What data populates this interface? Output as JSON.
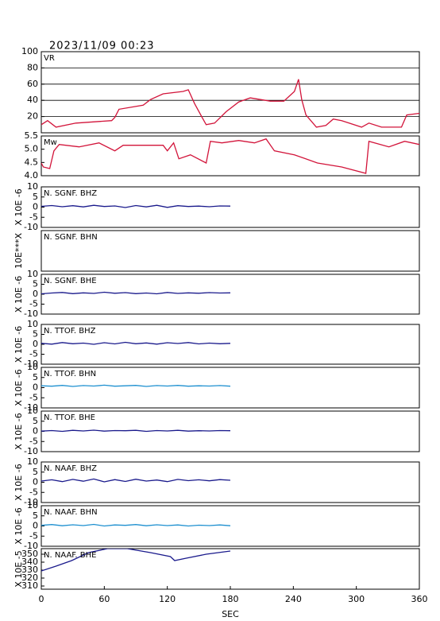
{
  "chart_data": [
    {
      "type": "line",
      "title": "2023/11/09 00:23",
      "label": "VR",
      "color": "#d2143a",
      "grid": true,
      "xlim": [
        0,
        360
      ],
      "ylim": [
        0,
        100
      ],
      "yticks": [
        20,
        40,
        60,
        80,
        100
      ],
      "x": [
        0,
        6,
        14,
        33,
        67,
        70,
        74,
        97,
        104,
        116,
        135,
        140,
        146,
        154,
        157,
        165,
        176,
        188,
        199,
        218,
        231,
        241,
        245,
        248,
        252,
        262,
        271,
        278,
        286,
        305,
        312,
        324,
        343,
        348,
        360
      ],
      "values": [
        10,
        15,
        7,
        12,
        15,
        19,
        29,
        34,
        41,
        48,
        51,
        53,
        36,
        17,
        10,
        12,
        26,
        38,
        43,
        39,
        39,
        51,
        66,
        41,
        22,
        7,
        9,
        17,
        15,
        7,
        12,
        7,
        7,
        22,
        24
      ]
    },
    {
      "type": "line",
      "label": "Mw",
      "color": "#d2143a",
      "xlim": [
        0,
        360
      ],
      "ylim": [
        4.0,
        5.5
      ],
      "yticks": [
        {
          "value": 4.0,
          "label": "4.0"
        },
        4.5,
        {
          "value": 5.0,
          "label": "5.0"
        },
        5.5
      ],
      "x": [
        0,
        2,
        8,
        12,
        17,
        36,
        55,
        70,
        78,
        116,
        120,
        126,
        131,
        142,
        157,
        161,
        172,
        188,
        203,
        214,
        222,
        241,
        263,
        286,
        309,
        312,
        331,
        346,
        360
      ],
      "values": [
        4.48,
        4.33,
        4.27,
        4.94,
        5.18,
        5.09,
        5.24,
        4.94,
        5.15,
        5.15,
        4.94,
        5.24,
        4.64,
        4.79,
        4.48,
        5.3,
        5.24,
        5.33,
        5.24,
        5.39,
        4.94,
        4.79,
        4.48,
        4.33,
        4.09,
        5.3,
        5.09,
        5.3,
        5.18
      ]
    },
    {
      "type": "line",
      "label": "N. SGNF. BHZ",
      "ylabel": "X 10E -6",
      "color": "#1a1a8c",
      "xlim": [
        0,
        360
      ],
      "ylim": [
        -10,
        10
      ],
      "yticks": [
        -10,
        -5,
        0,
        5,
        10
      ],
      "x": [
        0,
        10,
        20,
        30,
        40,
        50,
        60,
        70,
        80,
        90,
        100,
        110,
        120,
        130,
        140,
        150,
        160,
        170,
        180
      ],
      "values": [
        0.4,
        0.8,
        0.2,
        0.7,
        0.1,
        0.9,
        0.3,
        0.6,
        -0.2,
        0.8,
        0.1,
        0.9,
        -0.1,
        0.7,
        0.3,
        0.5,
        0.2,
        0.6,
        0.5
      ]
    },
    {
      "type": "line",
      "label": "N. SGNF. BHN",
      "ylabel": "10E***X",
      "color": "#1e90d0",
      "xlim": [
        0,
        360
      ],
      "ylim": [
        -10,
        10
      ]
    },
    {
      "type": "line",
      "label": "N. SGNF. BHE",
      "ylabel": "X 10E -6",
      "color": "#1a1a8c",
      "xlim": [
        0,
        360
      ],
      "ylim": [
        -10,
        10
      ],
      "yticks": [
        -10,
        -5,
        0,
        5,
        10
      ],
      "x": [
        0,
        10,
        20,
        30,
        40,
        50,
        60,
        70,
        80,
        90,
        100,
        110,
        120,
        130,
        140,
        150,
        160,
        170,
        180
      ],
      "values": [
        0.2,
        0.6,
        0.9,
        0.3,
        0.7,
        0.4,
        1.0,
        0.5,
        0.8,
        0.3,
        0.6,
        0.2,
        0.9,
        0.4,
        0.7,
        0.5,
        0.8,
        0.6,
        0.7
      ]
    },
    {
      "type": "line",
      "label": "N. TTOF. BHZ",
      "ylabel": "X 10E -6",
      "color": "#1a1a8c",
      "xlim": [
        0,
        360
      ],
      "ylim": [
        -10,
        10
      ],
      "yticks": [
        -10,
        -5,
        0,
        5,
        10
      ],
      "x": [
        0,
        10,
        20,
        30,
        40,
        50,
        60,
        70,
        80,
        90,
        100,
        110,
        120,
        130,
        140,
        150,
        160,
        170,
        180
      ],
      "values": [
        0.5,
        0.1,
        0.9,
        0.3,
        0.6,
        0.0,
        0.8,
        0.2,
        1.0,
        0.3,
        0.7,
        0.1,
        0.8,
        0.4,
        0.9,
        0.2,
        0.6,
        0.3,
        0.5
      ]
    },
    {
      "type": "line",
      "label": "N. TTOF. BHN",
      "ylabel": "X 10E -6",
      "color": "#1e90d0",
      "xlim": [
        0,
        360
      ],
      "ylim": [
        -10,
        10
      ],
      "yticks": [
        -10,
        -5,
        0,
        5,
        10
      ],
      "x": [
        0,
        10,
        20,
        30,
        40,
        50,
        60,
        70,
        80,
        90,
        100,
        110,
        120,
        130,
        140,
        150,
        160,
        170,
        180
      ],
      "values": [
        0.9,
        0.7,
        1.1,
        0.6,
        1.0,
        0.8,
        1.2,
        0.7,
        0.9,
        1.1,
        0.6,
        1.0,
        0.8,
        1.1,
        0.7,
        0.9,
        0.8,
        1.0,
        0.7
      ]
    },
    {
      "type": "line",
      "label": "N. TTOF. BHE",
      "ylabel": "X 10E -6",
      "color": "#1a1a8c",
      "xlim": [
        0,
        360
      ],
      "ylim": [
        -10,
        10
      ],
      "yticks": [
        -10,
        -5,
        0,
        5,
        10
      ],
      "x": [
        0,
        10,
        20,
        30,
        40,
        50,
        60,
        70,
        80,
        90,
        100,
        110,
        120,
        130,
        140,
        150,
        160,
        170,
        180
      ],
      "values": [
        0.1,
        0.4,
        0.0,
        0.5,
        0.2,
        0.6,
        0.1,
        0.4,
        0.3,
        0.5,
        0.0,
        0.4,
        0.2,
        0.5,
        0.1,
        0.3,
        0.2,
        0.4,
        0.3
      ]
    },
    {
      "type": "line",
      "label": "N. NAAF. BHZ",
      "ylabel": "X 10E -6",
      "color": "#1a1a8c",
      "xlim": [
        0,
        360
      ],
      "ylim": [
        -10,
        10
      ],
      "yticks": [
        -10,
        -5,
        0,
        5,
        10
      ],
      "x": [
        0,
        10,
        20,
        30,
        40,
        50,
        60,
        70,
        80,
        90,
        100,
        110,
        120,
        130,
        140,
        150,
        160,
        170,
        180
      ],
      "values": [
        0.6,
        1.2,
        0.3,
        1.4,
        0.5,
        1.6,
        0.2,
        1.3,
        0.4,
        1.5,
        0.6,
        1.1,
        0.3,
        1.4,
        0.8,
        1.2,
        0.7,
        1.3,
        1.0
      ]
    },
    {
      "type": "line",
      "label": "N. NAAF. BHN",
      "ylabel": "X 10E -6",
      "color": "#1e90d0",
      "xlim": [
        0,
        360
      ],
      "ylim": [
        -10,
        10
      ],
      "yticks": [
        -10,
        -5,
        0,
        5,
        10
      ],
      "x": [
        0,
        10,
        20,
        30,
        40,
        50,
        60,
        70,
        80,
        90,
        100,
        110,
        120,
        130,
        140,
        150,
        160,
        170,
        180
      ],
      "values": [
        0.3,
        0.7,
        0.1,
        0.6,
        0.2,
        0.8,
        0.0,
        0.5,
        0.3,
        0.7,
        0.1,
        0.6,
        0.2,
        0.5,
        0.0,
        0.4,
        0.2,
        0.5,
        0.1
      ]
    },
    {
      "type": "line",
      "label": "N. NAAF. BHE",
      "ylabel": "X 10E -5",
      "color": "#1a1a8c",
      "xlim": [
        0,
        360
      ],
      "ylim": [
        306,
        357
      ],
      "yticks": [
        310,
        320,
        330,
        340,
        350
      ],
      "xlabel": "SEC",
      "xticks": [
        0,
        60,
        120,
        180,
        240,
        300,
        360
      ],
      "x": [
        0,
        14,
        29,
        45,
        63,
        82,
        104,
        123,
        127,
        138,
        157,
        180
      ],
      "values": [
        329,
        335,
        342,
        352,
        357,
        357,
        352,
        347,
        342,
        345,
        350,
        354
      ]
    }
  ]
}
